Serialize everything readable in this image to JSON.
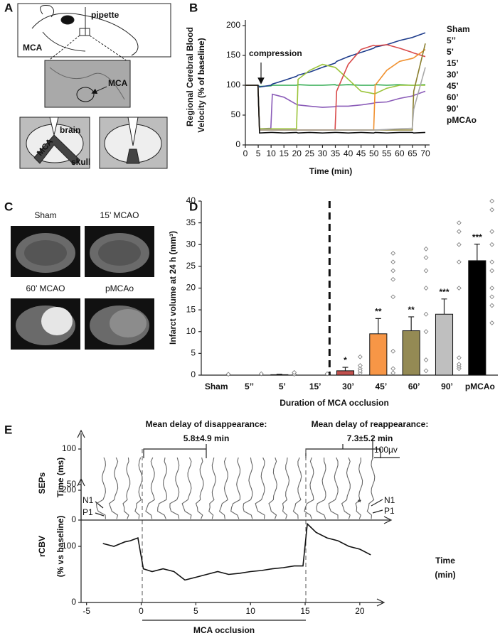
{
  "panel_labels": [
    "A",
    "B",
    "C",
    "D",
    "E"
  ],
  "diagram_a": {
    "labels": [
      "pipette",
      "MCA",
      "MCA",
      "brain",
      "MCA",
      "skull"
    ]
  },
  "images_c": {
    "labels": [
      "Sham",
      "15’ MCAO",
      "60’ MCAO",
      "pMCAo"
    ]
  },
  "chart_data": [
    {
      "type": "line",
      "ylabel": [
        "Regional Cerebral Blood",
        "Velocity (% of baseline)"
      ],
      "xlabel": "Time (min)",
      "annotation": "compression",
      "x": [
        0,
        4.9,
        5.5,
        9.9,
        10.5,
        15,
        19.9,
        20.5,
        25,
        30,
        34.9,
        35.5,
        40,
        45,
        49.9,
        50.5,
        55,
        60,
        64.9,
        65.5,
        70
      ],
      "xlim": [
        0,
        70
      ],
      "xticks": [
        0,
        5,
        10,
        15,
        20,
        25,
        30,
        35,
        40,
        45,
        50,
        55,
        60,
        65,
        70
      ],
      "ylim": [
        0,
        200
      ],
      "yticks": [
        0,
        50,
        100,
        150,
        200
      ],
      "series": [
        {
          "name": "Sham",
          "color": "#2eaa4e",
          "values": [
            100,
            100,
            98,
            99,
            100,
            100,
            100,
            101,
            100,
            100,
            101,
            100,
            101,
            100,
            100,
            101,
            100,
            101,
            100,
            100,
            101
          ]
        },
        {
          "name": "5’’",
          "color": "#1f3d8c",
          "values": [
            100,
            100,
            97,
            100,
            102,
            108,
            115,
            117,
            122,
            130,
            137,
            140,
            148,
            155,
            162,
            164,
            168,
            175,
            180,
            181,
            188
          ]
        },
        {
          "name": "5’",
          "color": "#8a5bb8",
          "values": [
            100,
            100,
            27,
            28,
            85,
            80,
            68,
            67,
            65,
            63,
            64,
            65,
            65,
            67,
            70,
            71,
            72,
            78,
            82,
            83,
            90
          ]
        },
        {
          "name": "15’",
          "color": "#9bc43a",
          "values": [
            100,
            100,
            27,
            27,
            27,
            27,
            27,
            110,
            125,
            135,
            130,
            128,
            110,
            90,
            86,
            86,
            95,
            100,
            100,
            100,
            100
          ]
        },
        {
          "name": "30’",
          "color": "#d94b4b",
          "values": [
            100,
            100,
            25,
            25,
            25,
            25,
            25,
            25,
            25,
            25,
            25,
            90,
            135,
            160,
            167,
            166,
            168,
            162,
            155,
            154,
            148
          ]
        },
        {
          "name": "45’",
          "color": "#f0902e",
          "values": [
            100,
            100,
            25,
            25,
            25,
            25,
            25,
            25,
            25,
            25,
            25,
            25,
            25,
            25,
            25,
            100,
            125,
            140,
            145,
            146,
            160
          ]
        },
        {
          "name": "60’",
          "color": "#8a7e2e",
          "values": [
            100,
            100,
            25,
            25,
            25,
            25,
            25,
            25,
            25,
            25,
            25,
            25,
            25,
            25,
            25,
            25,
            25,
            25,
            25,
            90,
            170
          ]
        },
        {
          "name": "90’",
          "color": "#a8a8a8",
          "values": [
            100,
            100,
            25,
            25,
            25,
            25,
            25,
            25,
            25,
            25,
            25,
            25,
            25,
            25,
            25,
            25,
            26,
            27,
            28,
            60,
            130
          ]
        },
        {
          "name": "pMCAo",
          "color": "#111111",
          "values": [
            100,
            100,
            20,
            21,
            21,
            20,
            21,
            20,
            21,
            20,
            21,
            21,
            20,
            21,
            20,
            21,
            20,
            21,
            21,
            20,
            21
          ]
        }
      ]
    },
    {
      "type": "bar",
      "ylabel": "Infarct volume at 24 h (mm³)",
      "xlabel": "Duration of MCA occlusion",
      "categories": [
        "Sham",
        "5’’",
        "5’",
        "15’",
        "30’",
        "45’",
        "60’",
        "90’",
        "pMCAo"
      ],
      "values": [
        0,
        0,
        0.1,
        0,
        1.0,
        9.5,
        10.2,
        14.0,
        26.3
      ],
      "errors": [
        0,
        0,
        0.1,
        0,
        0.8,
        3.5,
        3.2,
        3.5,
        3.8
      ],
      "colors": [
        "#ffffff",
        "#ffffff",
        "#ffffff",
        "#ffffff",
        "#c0504d",
        "#f79646",
        "#948a54",
        "#bfbfbf",
        "#000000"
      ],
      "significance": [
        null,
        null,
        null,
        null,
        "*",
        "**",
        "**",
        "***",
        "***"
      ],
      "points": [
        [
          0.2
        ],
        [
          0.3
        ],
        [
          0.2,
          0.6
        ],
        [
          0.3
        ],
        [
          0.5,
          1.5,
          2.2,
          4.2,
          1.0
        ],
        [
          0.5,
          1.5,
          5.5,
          18,
          22,
          24,
          26,
          28
        ],
        [
          1.0,
          3.5,
          10,
          14,
          20,
          24,
          27,
          29
        ],
        [
          1.5,
          2.0,
          2.5,
          4.0,
          20,
          26,
          30,
          33,
          35
        ],
        [
          12,
          16,
          18,
          20,
          24,
          26,
          30,
          33,
          38,
          40
        ]
      ],
      "ylim": [
        0,
        40
      ],
      "yticks": [
        0,
        5,
        10,
        15,
        20,
        25,
        30,
        35,
        40
      ]
    },
    {
      "type": "traces",
      "ylabel": [
        "SEPs",
        "Time (ms)"
      ],
      "ylim": [
        0,
        110
      ],
      "yticks": [
        0,
        50,
        100
      ],
      "annotations": [
        "Mean delay of disappearance:",
        "5.8±4.9 min",
        "Mean delay of reappearance:",
        "7.3±5.2 min"
      ],
      "peak_labels": [
        "N1",
        "P1",
        "N1",
        "P1",
        "*"
      ],
      "scale_label": "100µv"
    },
    {
      "type": "line",
      "ylabel": [
        "rCBV",
        "(% vs baseline)"
      ],
      "xlabel": [
        "Time",
        "(min)"
      ],
      "annotation": "MCA occlusion",
      "x": [
        -3.5,
        -2.5,
        -1.5,
        -1,
        -0.3,
        0.2,
        1,
        2,
        3,
        4,
        5,
        6,
        7,
        8,
        9,
        10,
        11,
        12,
        13,
        14,
        14.8,
        15.2,
        16,
        17,
        18,
        19,
        20,
        21
      ],
      "values": [
        105,
        100,
        108,
        110,
        115,
        60,
        55,
        60,
        55,
        40,
        45,
        50,
        55,
        50,
        52,
        55,
        57,
        60,
        62,
        65,
        65,
        140,
        125,
        115,
        110,
        100,
        95,
        85
      ],
      "color": "#111111",
      "xlim": [
        -5.5,
        21.7
      ],
      "xticks": [
        -5,
        0,
        5,
        10,
        15,
        20
      ],
      "ylim": [
        0,
        200
      ],
      "yticks": [
        0,
        100,
        200
      ]
    }
  ]
}
